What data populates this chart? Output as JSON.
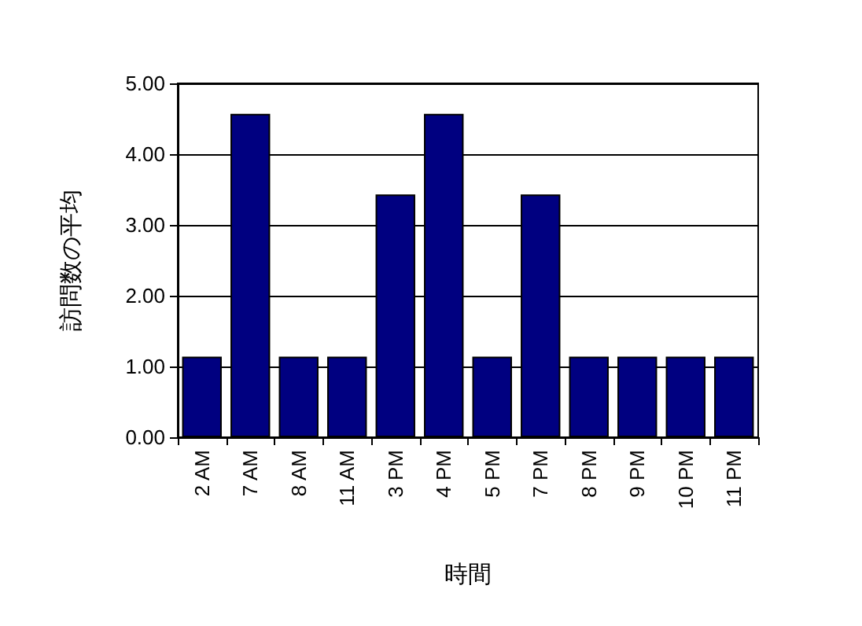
{
  "chart_data": {
    "type": "bar",
    "xlabel": "時間",
    "ylabel": "訪問数の平均",
    "categories": [
      "2 AM",
      "7 AM",
      "8 AM",
      "11 AM",
      "3 PM",
      "4 PM",
      "5 PM",
      "7 PM",
      "8 PM",
      "9 PM",
      "10 PM",
      "11 PM"
    ],
    "values": [
      1.14,
      4.57,
      1.14,
      1.14,
      3.43,
      4.57,
      1.14,
      3.43,
      1.14,
      1.14,
      1.14,
      1.14
    ],
    "color": "#000080",
    "ylim": [
      0,
      5
    ],
    "yticks": [
      {
        "value": 0,
        "label": "0.00"
      },
      {
        "value": 1,
        "label": "1.00"
      },
      {
        "value": 2,
        "label": "2.00"
      },
      {
        "value": 3,
        "label": "3.00"
      },
      {
        "value": 4,
        "label": "4.00"
      },
      {
        "value": 5,
        "label": "5.00"
      }
    ],
    "grid": "y"
  }
}
